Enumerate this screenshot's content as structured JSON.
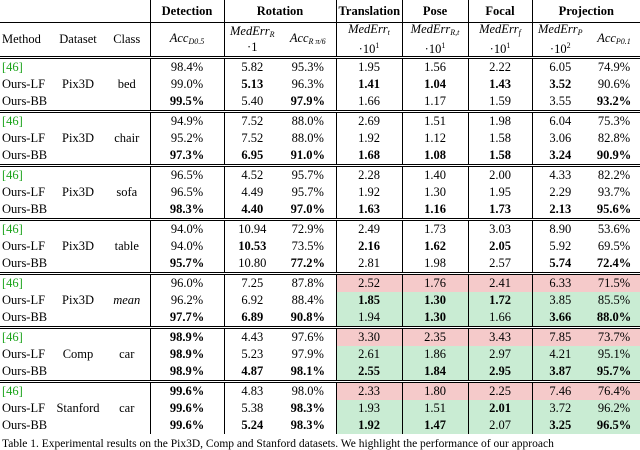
{
  "header": {
    "groups": [
      {
        "label": "Detection",
        "span": 1
      },
      {
        "label": "Rotation",
        "span": 2
      },
      {
        "label": "Translation",
        "span": 1
      },
      {
        "label": "Pose",
        "span": 1
      },
      {
        "label": "Focal",
        "span": 1
      },
      {
        "label": "Projection",
        "span": 2
      }
    ],
    "columns": [
      "Method",
      "Dataset",
      "Class"
    ],
    "metrics": [
      {
        "name": "Acc",
        "sub": "D0.5"
      },
      {
        "name": "MedErr",
        "sub": "R",
        "scale": "·1"
      },
      {
        "name": "Acc",
        "sub": "R π/6"
      },
      {
        "name": "MedErr",
        "sub": "t",
        "scale": "·10",
        "sup": "1"
      },
      {
        "name": "MedErr",
        "sub": "R,t",
        "scale": "·10",
        "sup": "1"
      },
      {
        "name": "MedErr",
        "sub": "f",
        "scale": "·10",
        "sup": "1"
      },
      {
        "name": "MedErr",
        "sub": "P",
        "scale": "·10",
        "sup": "2"
      },
      {
        "name": "Acc",
        "sub": "P0.1"
      }
    ]
  },
  "style": {
    "citation_color": "#1aa31a",
    "red": "#f5caca",
    "green": "#c9ecd3"
  },
  "table": {
    "groups": [
      {
        "dataset": "Pix3D",
        "class": "bed",
        "rows": [
          {
            "method": "[46]",
            "values": [
              "98.4%",
              "5.82",
              "95.3%",
              "1.95",
              "1.56",
              "2.22",
              "6.05",
              "74.9%"
            ],
            "bold": []
          },
          {
            "method": "Ours-LF",
            "values": [
              "99.0%",
              "5.13",
              "96.3%",
              "1.41",
              "1.04",
              "1.43",
              "3.52",
              "90.6%"
            ],
            "bold": [
              1,
              3,
              4,
              5,
              6
            ]
          },
          {
            "method": "Ours-BB",
            "values": [
              "99.5%",
              "5.40",
              "97.9%",
              "1.66",
              "1.17",
              "1.59",
              "3.55",
              "93.2%"
            ],
            "bold": [
              0,
              2,
              7
            ]
          }
        ]
      },
      {
        "dataset": "Pix3D",
        "class": "chair",
        "rows": [
          {
            "method": "[46]",
            "values": [
              "94.9%",
              "7.52",
              "88.0%",
              "2.69",
              "1.51",
              "1.98",
              "6.04",
              "75.3%"
            ],
            "bold": []
          },
          {
            "method": "Ours-LF",
            "values": [
              "95.2%",
              "7.52",
              "88.0%",
              "1.92",
              "1.12",
              "1.58",
              "3.06",
              "82.8%"
            ],
            "bold": []
          },
          {
            "method": "Ours-BB",
            "values": [
              "97.3%",
              "6.95",
              "91.0%",
              "1.68",
              "1.08",
              "1.58",
              "3.24",
              "90.9%"
            ],
            "bold": [
              0,
              1,
              2,
              3,
              4,
              5,
              6,
              7
            ]
          }
        ]
      },
      {
        "dataset": "Pix3D",
        "class": "sofa",
        "rows": [
          {
            "method": "[46]",
            "values": [
              "96.5%",
              "4.52",
              "95.7%",
              "2.28",
              "1.40",
              "2.00",
              "4.33",
              "82.2%"
            ],
            "bold": []
          },
          {
            "method": "Ours-LF",
            "values": [
              "96.5%",
              "4.49",
              "95.7%",
              "1.92",
              "1.30",
              "1.95",
              "2.29",
              "93.7%"
            ],
            "bold": []
          },
          {
            "method": "Ours-BB",
            "values": [
              "98.3%",
              "4.40",
              "97.0%",
              "1.63",
              "1.16",
              "1.73",
              "2.13",
              "95.6%"
            ],
            "bold": [
              0,
              1,
              2,
              3,
              4,
              5,
              6,
              7
            ]
          }
        ]
      },
      {
        "dataset": "Pix3D",
        "class": "table",
        "rows": [
          {
            "method": "[46]",
            "values": [
              "94.0%",
              "10.94",
              "72.9%",
              "2.49",
              "1.73",
              "3.03",
              "8.90",
              "53.6%"
            ],
            "bold": []
          },
          {
            "method": "Ours-LF",
            "values": [
              "94.0%",
              "10.53",
              "73.5%",
              "2.16",
              "1.62",
              "2.05",
              "5.92",
              "69.5%"
            ],
            "bold": [
              1,
              3,
              4,
              5
            ]
          },
          {
            "method": "Ours-BB",
            "values": [
              "95.7%",
              "10.80",
              "77.2%",
              "2.81",
              "1.98",
              "2.57",
              "5.74",
              "72.4%"
            ],
            "bold": [
              0,
              2,
              6,
              7
            ]
          }
        ]
      },
      {
        "dataset": "Pix3D",
        "class": "mean",
        "italic": true,
        "highlight": true,
        "rows": [
          {
            "method": "[46]",
            "values": [
              "96.0%",
              "7.25",
              "87.8%",
              "2.52",
              "1.76",
              "2.41",
              "6.33",
              "71.5%"
            ],
            "bold": []
          },
          {
            "method": "Ours-LF",
            "values": [
              "96.2%",
              "6.92",
              "88.4%",
              "1.85",
              "1.30",
              "1.72",
              "3.85",
              "85.5%"
            ],
            "bold": [
              3,
              4,
              5
            ]
          },
          {
            "method": "Ours-BB",
            "values": [
              "97.7%",
              "6.89",
              "90.8%",
              "1.94",
              "1.30",
              "1.66",
              "3.66",
              "88.0%"
            ],
            "bold": [
              0,
              1,
              2,
              4,
              6,
              7
            ]
          }
        ]
      },
      {
        "dataset": "Comp",
        "class": "car",
        "highlight": true,
        "rows": [
          {
            "method": "[46]",
            "values": [
              "98.9%",
              "4.43",
              "97.6%",
              "3.30",
              "2.35",
              "3.43",
              "7.85",
              "73.7%"
            ],
            "bold": [
              0
            ]
          },
          {
            "method": "Ours-LF",
            "values": [
              "98.9%",
              "5.23",
              "97.9%",
              "2.61",
              "1.86",
              "2.97",
              "4.21",
              "95.1%"
            ],
            "bold": [
              0
            ]
          },
          {
            "method": "Ours-BB",
            "values": [
              "98.9%",
              "4.87",
              "98.1%",
              "2.55",
              "1.84",
              "2.95",
              "3.87",
              "95.7%"
            ],
            "bold": [
              0,
              1,
              2,
              3,
              4,
              5,
              6,
              7
            ]
          }
        ]
      },
      {
        "dataset": "Stanford",
        "class": "car",
        "highlight": true,
        "rows": [
          {
            "method": "[46]",
            "values": [
              "99.6%",
              "4.83",
              "98.0%",
              "2.33",
              "1.80",
              "2.25",
              "7.46",
              "76.4%"
            ],
            "bold": [
              0
            ]
          },
          {
            "method": "Ours-LF",
            "values": [
              "99.6%",
              "5.38",
              "98.3%",
              "1.93",
              "1.51",
              "2.01",
              "3.72",
              "96.2%"
            ],
            "bold": [
              0,
              2,
              5
            ]
          },
          {
            "method": "Ours-BB",
            "values": [
              "99.6%",
              "5.24",
              "98.3%",
              "1.92",
              "1.47",
              "2.07",
              "3.25",
              "96.5%"
            ],
            "bold": [
              0,
              1,
              2,
              3,
              4,
              6,
              7
            ]
          }
        ]
      }
    ]
  },
  "caption": "Table 1. Experimental results on the Pix3D, Comp and Stanford datasets. We highlight the performance of our approach"
}
